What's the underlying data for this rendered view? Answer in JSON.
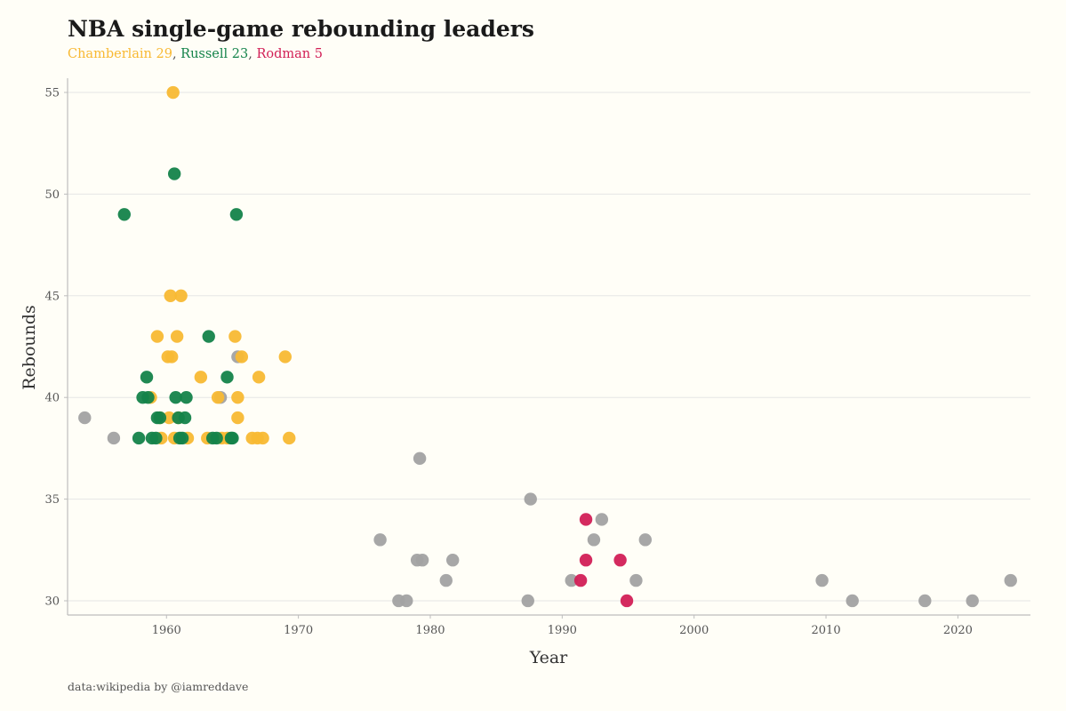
{
  "title": "NBA single-game rebounding leaders",
  "subtitle": {
    "chamberlain": "Chamberlain 29",
    "sep1": ", ",
    "russell": "Russell 23",
    "sep2": ", ",
    "rodman": "Rodman 5"
  },
  "caption": "data:wikipedia by @iamreddave",
  "colors": {
    "Chamberlain": "#f8b933",
    "Russell": "#14834a",
    "Rodman": "#d21f56",
    "Other": "#a2a2a2",
    "grid": "#e6e6e6",
    "axis": "#bdbdbd"
  },
  "chart_data": {
    "type": "scatter",
    "title": "NBA single-game rebounding leaders",
    "xlabel": "Year",
    "ylabel": "Rebounds",
    "xlim": [
      1952.5,
      2025.5
    ],
    "ylim": [
      29.3,
      55.7
    ],
    "x_ticks": [
      1960,
      1970,
      1980,
      1990,
      2000,
      2010,
      2020
    ],
    "y_ticks": [
      30,
      35,
      40,
      45,
      50,
      55
    ],
    "grid": "horizontal",
    "series": [
      {
        "name": "Other",
        "points": [
          [
            1953.8,
            39
          ],
          [
            1956.0,
            38
          ],
          [
            1964.1,
            40
          ],
          [
            1965.4,
            42
          ],
          [
            1976.2,
            33
          ],
          [
            1977.6,
            30
          ],
          [
            1978.2,
            30
          ],
          [
            1979.0,
            32
          ],
          [
            1979.2,
            37
          ],
          [
            1979.4,
            32
          ],
          [
            1981.2,
            31
          ],
          [
            1981.7,
            32
          ],
          [
            1987.4,
            30
          ],
          [
            1987.6,
            35
          ],
          [
            1990.7,
            31
          ],
          [
            1992.4,
            33
          ],
          [
            1993.0,
            34
          ],
          [
            1995.6,
            31
          ],
          [
            1996.3,
            33
          ],
          [
            2009.7,
            31
          ],
          [
            2012.0,
            30
          ],
          [
            2017.5,
            30
          ],
          [
            2021.1,
            30
          ],
          [
            2024.0,
            31
          ]
        ]
      },
      {
        "name": "Chamberlain",
        "points": [
          [
            1960.5,
            55
          ],
          [
            1960.3,
            45
          ],
          [
            1961.1,
            45
          ],
          [
            1959.3,
            43
          ],
          [
            1960.8,
            43
          ],
          [
            1965.2,
            43
          ],
          [
            1960.1,
            42
          ],
          [
            1960.4,
            42
          ],
          [
            1965.7,
            42
          ],
          [
            1969.0,
            42
          ],
          [
            1962.6,
            41
          ],
          [
            1967.0,
            41
          ],
          [
            1958.8,
            40
          ],
          [
            1963.9,
            40
          ],
          [
            1965.4,
            40
          ],
          [
            1959.5,
            39
          ],
          [
            1960.2,
            39
          ],
          [
            1960.9,
            39
          ],
          [
            1965.4,
            39
          ],
          [
            1959.6,
            38
          ],
          [
            1960.6,
            38
          ],
          [
            1961.6,
            38
          ],
          [
            1963.1,
            38
          ],
          [
            1964.2,
            38
          ],
          [
            1966.5,
            38
          ],
          [
            1966.9,
            38
          ],
          [
            1967.3,
            38
          ],
          [
            1969.3,
            38
          ],
          [
            1964.6,
            38
          ]
        ]
      },
      {
        "name": "Russell",
        "points": [
          [
            1960.6,
            51
          ],
          [
            1956.8,
            49
          ],
          [
            1965.3,
            49
          ],
          [
            1963.2,
            43
          ],
          [
            1958.5,
            41
          ],
          [
            1964.6,
            41
          ],
          [
            1958.2,
            40
          ],
          [
            1958.6,
            40
          ],
          [
            1960.7,
            40
          ],
          [
            1961.5,
            40
          ],
          [
            1959.3,
            39
          ],
          [
            1959.5,
            39
          ],
          [
            1960.9,
            39
          ],
          [
            1961.4,
            39
          ],
          [
            1957.9,
            38
          ],
          [
            1958.9,
            38
          ],
          [
            1959.2,
            38
          ],
          [
            1961.0,
            38
          ],
          [
            1961.2,
            38
          ],
          [
            1963.5,
            38
          ],
          [
            1963.8,
            38
          ],
          [
            1964.9,
            38
          ],
          [
            1965.0,
            38
          ]
        ]
      },
      {
        "name": "Rodman",
        "points": [
          [
            1991.8,
            34
          ],
          [
            1991.8,
            32
          ],
          [
            1994.4,
            32
          ],
          [
            1991.4,
            31
          ],
          [
            1994.9,
            30
          ]
        ]
      }
    ]
  }
}
